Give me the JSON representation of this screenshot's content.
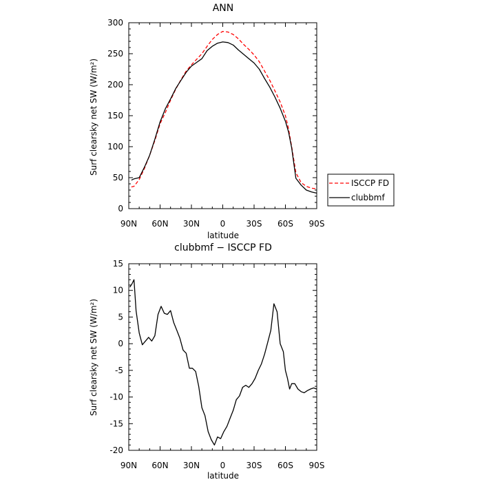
{
  "chart_data": [
    {
      "type": "line",
      "title": "ANN",
      "xlabel": "latitude",
      "ylabel": "Surf clearsky net SW (W/m²)",
      "x_ticks": [
        "90N",
        "60N",
        "30N",
        "0",
        "30S",
        "60S",
        "90S"
      ],
      "x_tick_values": [
        90,
        60,
        30,
        0,
        -30,
        -60,
        -90
      ],
      "xlim": [
        90,
        -90
      ],
      "ylim": [
        0,
        300
      ],
      "y_ticks": [
        0,
        50,
        100,
        150,
        200,
        250,
        300
      ],
      "legend_position": "right-outside",
      "series": [
        {
          "name": "ISCCP FD",
          "color": "#ff0000",
          "dash": "dashed",
          "x": [
            87.5,
            85,
            80,
            75,
            70,
            65,
            60,
            55,
            50,
            45,
            40,
            35,
            30,
            25,
            20,
            15,
            10,
            5,
            0,
            -5,
            -10,
            -15,
            -20,
            -25,
            -30,
            -35,
            -40,
            -45,
            -50,
            -55,
            -60,
            -63,
            -66,
            -70,
            -75,
            -80,
            -85,
            -90
          ],
          "y": [
            35,
            36,
            47,
            65,
            86,
            110,
            137,
            155,
            175,
            193,
            208,
            222,
            232,
            241,
            250,
            262,
            273,
            281,
            286,
            285,
            281,
            274,
            265,
            257,
            248,
            237,
            222,
            207,
            190,
            172,
            150,
            129,
            100,
            58,
            42,
            36,
            33,
            32
          ]
        },
        {
          "name": "clubbmf",
          "color": "#000000",
          "dash": "solid",
          "x": [
            87.5,
            85,
            80,
            75,
            70,
            65,
            60,
            55,
            50,
            45,
            40,
            35,
            30,
            25,
            20,
            15,
            10,
            5,
            0,
            -5,
            -10,
            -15,
            -20,
            -25,
            -30,
            -35,
            -40,
            -45,
            -50,
            -55,
            -60,
            -63,
            -66,
            -70,
            -75,
            -80,
            -85,
            -90
          ],
          "y": [
            46,
            48,
            50,
            67,
            86,
            112,
            140,
            161,
            177,
            194,
            207,
            220,
            230,
            236,
            242,
            255,
            262,
            267,
            269,
            268,
            264,
            256,
            249,
            242,
            235,
            225,
            210,
            196,
            180,
            162,
            141,
            124,
            98,
            49,
            38,
            30,
            27,
            25
          ]
        }
      ]
    },
    {
      "type": "line",
      "title": "clubbmf − ISCCP FD",
      "xlabel": "latitude",
      "ylabel": "Surf clearsky net SW (W/m²)",
      "x_ticks": [
        "90N",
        "60N",
        "30N",
        "0",
        "30S",
        "60S",
        "90S"
      ],
      "x_tick_values": [
        90,
        60,
        30,
        0,
        -30,
        -60,
        -90
      ],
      "xlim": [
        90,
        -90
      ],
      "ylim": [
        -20,
        15
      ],
      "y_ticks": [
        -20,
        -15,
        -10,
        -5,
        0,
        5,
        10,
        15
      ],
      "series": [
        {
          "color": "#000000",
          "dash": "solid",
          "x": [
            89,
            87,
            85,
            83,
            80,
            77,
            74,
            71,
            68,
            65,
            62,
            59,
            56,
            53,
            50,
            47,
            44,
            41,
            38,
            35,
            32,
            29,
            26,
            23,
            20,
            17,
            14,
            11,
            8,
            5,
            2,
            -1,
            -4,
            -7,
            -10,
            -13,
            -16,
            -19,
            -22,
            -25,
            -28,
            -31,
            -34,
            -37,
            -40,
            -43,
            -46,
            -49,
            -52,
            -55,
            -58,
            -60,
            -62,
            -64,
            -66,
            -69,
            -72,
            -75,
            -78,
            -81,
            -84,
            -87,
            -90
          ],
          "y": [
            10.6,
            11.2,
            12.0,
            6.2,
            2.0,
            -0.2,
            0.5,
            1.2,
            0.5,
            1.5,
            5.5,
            7.0,
            5.7,
            5.5,
            6.2,
            4.0,
            2.5,
            1.0,
            -1.2,
            -1.8,
            -4.6,
            -4.6,
            -5.2,
            -8.0,
            -12.0,
            -13.5,
            -16.5,
            -18.0,
            -19.0,
            -17.5,
            -17.8,
            -16.5,
            -15.5,
            -14.0,
            -12.5,
            -10.5,
            -9.8,
            -8.2,
            -7.8,
            -8.2,
            -7.5,
            -6.5,
            -5.0,
            -3.8,
            -2.0,
            0.2,
            2.5,
            7.5,
            6.0,
            0.0,
            -1.5,
            -5.0,
            -6.5,
            -8.5,
            -7.5,
            -7.5,
            -8.5,
            -9.0,
            -9.2,
            -8.8,
            -8.5,
            -8.3,
            -8.5
          ]
        }
      ]
    }
  ]
}
